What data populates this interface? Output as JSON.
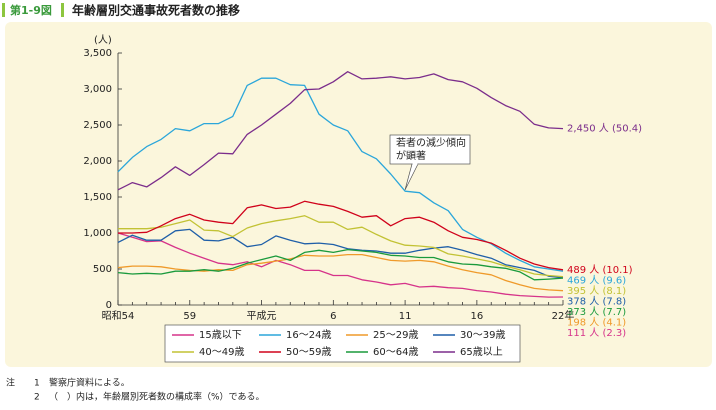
{
  "figure_label": "第1-9図",
  "chart_data": {
    "type": "line",
    "title": "年齢層別交通事故死者数の推移",
    "y_label": "(人)",
    "annotation": [
      "若者の減少傾向",
      "が顕著"
    ],
    "categories": [
      "昭和54",
      null,
      null,
      null,
      null,
      "59",
      null,
      null,
      null,
      null,
      "平成元",
      null,
      null,
      null,
      null,
      "6",
      null,
      null,
      null,
      null,
      "11",
      null,
      null,
      null,
      null,
      "16",
      null,
      null,
      null,
      null,
      null,
      "22年"
    ],
    "ylim": [
      0,
      3500
    ],
    "yticks": [
      0,
      500,
      {
        "value": 1000,
        "label": "1,000"
      },
      {
        "value": 1500,
        "label": "1,500"
      },
      {
        "value": 2000,
        "label": "2,000"
      },
      {
        "value": 2500,
        "label": "2,500"
      },
      {
        "value": 3000,
        "label": "3,000"
      },
      {
        "value": 3500,
        "label": "3,500"
      }
    ],
    "grid": false,
    "series": [
      {
        "name": "15歳以下",
        "color": "#d6338a",
        "end_label": "111 人 (2.3)",
        "values": [
          1000,
          940,
          880,
          890,
          800,
          720,
          650,
          580,
          560,
          600,
          530,
          620,
          560,
          480,
          480,
          410,
          410,
          350,
          320,
          280,
          300,
          250,
          260,
          240,
          230,
          200,
          180,
          150,
          130,
          120,
          110,
          111
        ]
      },
      {
        "name": "16～24歳",
        "color": "#2ba6da",
        "end_label": "469 人 (9.6)",
        "values": [
          1850,
          2050,
          2200,
          2300,
          2450,
          2420,
          2520,
          2520,
          2620,
          3050,
          3150,
          3150,
          3060,
          3050,
          2650,
          2500,
          2420,
          2130,
          2030,
          1820,
          1580,
          1560,
          1420,
          1310,
          1050,
          940,
          850,
          720,
          620,
          530,
          500,
          469
        ]
      },
      {
        "name": "25～29歳",
        "color": "#ef9a2a",
        "end_label": "198 人 (4.1)",
        "values": [
          520,
          540,
          540,
          530,
          500,
          480,
          470,
          490,
          480,
          560,
          580,
          610,
          640,
          690,
          680,
          680,
          700,
          700,
          660,
          620,
          610,
          620,
          600,
          540,
          490,
          450,
          420,
          340,
          280,
          230,
          210,
          198
        ]
      },
      {
        "name": "30～39歳",
        "color": "#1f5fa8",
        "end_label": "378 人 (7.8)",
        "values": [
          870,
          970,
          900,
          900,
          1030,
          1050,
          900,
          890,
          940,
          810,
          840,
          960,
          900,
          850,
          860,
          840,
          780,
          760,
          750,
          720,
          720,
          760,
          790,
          810,
          760,
          700,
          650,
          560,
          520,
          480,
          400,
          378
        ]
      },
      {
        "name": "40～49歳",
        "color": "#c2c234",
        "end_label": "395 人 (8.1)",
        "values": [
          1060,
          1060,
          1060,
          1080,
          1130,
          1180,
          1040,
          1030,
          950,
          1070,
          1130,
          1170,
          1200,
          1240,
          1150,
          1150,
          1050,
          1080,
          980,
          890,
          830,
          820,
          800,
          710,
          680,
          640,
          600,
          540,
          490,
          430,
          410,
          395
        ]
      },
      {
        "name": "50～59歳",
        "color": "#d0021b",
        "end_label": "489 人 (10.1)",
        "values": [
          1000,
          1000,
          1010,
          1100,
          1200,
          1260,
          1180,
          1150,
          1130,
          1350,
          1390,
          1340,
          1360,
          1440,
          1400,
          1370,
          1300,
          1220,
          1240,
          1100,
          1200,
          1220,
          1150,
          1030,
          940,
          910,
          860,
          760,
          650,
          570,
          520,
          489
        ]
      },
      {
        "name": "60～64歳",
        "color": "#1a9a3c",
        "end_label": "373 人 (7.7)",
        "values": [
          450,
          430,
          440,
          430,
          470,
          470,
          490,
          470,
          510,
          580,
          630,
          680,
          620,
          730,
          760,
          730,
          770,
          750,
          730,
          690,
          680,
          660,
          660,
          600,
          570,
          560,
          530,
          510,
          460,
          350,
          360,
          373
        ]
      },
      {
        "name": "65歳以上",
        "color": "#7b2d8b",
        "end_label": "2,450 人 (50.4)",
        "values": [
          1600,
          1700,
          1640,
          1770,
          1920,
          1800,
          1950,
          2110,
          2100,
          2370,
          2500,
          2650,
          2800,
          2990,
          3000,
          3100,
          3240,
          3140,
          3150,
          3170,
          3140,
          3160,
          3210,
          3130,
          3100,
          3010,
          2880,
          2770,
          2690,
          2510,
          2460,
          2450
        ]
      }
    ]
  },
  "notes": [
    [
      "注",
      "1",
      "警察庁資料による。"
    ],
    [
      "",
      "2",
      "（　）内は，年齢層別死者数の構成率（%）である。"
    ]
  ]
}
